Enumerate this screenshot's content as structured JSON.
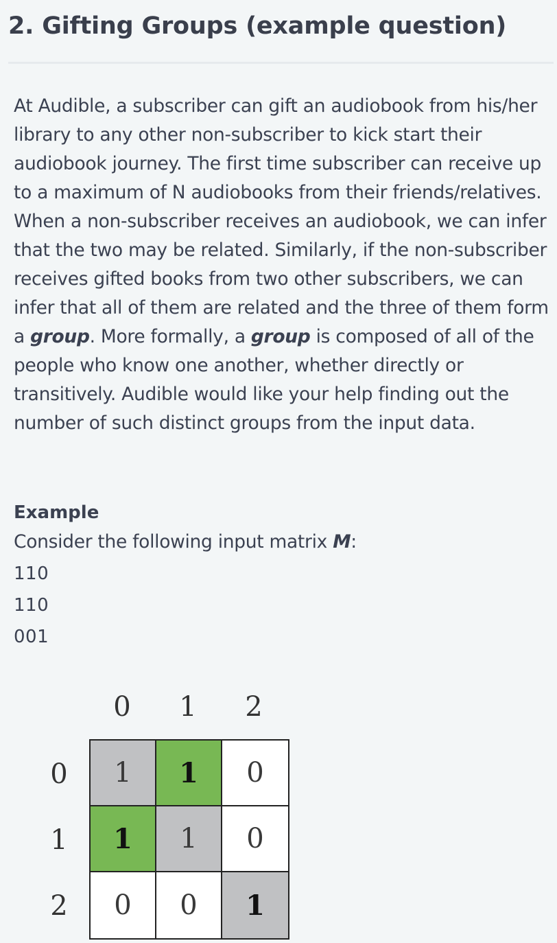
{
  "title": "2. Gifting Groups (example question)",
  "description": {
    "part1": "At Audible, a subscriber can gift an audiobook from his/her library to any other non-subscriber to kick start their audiobook journey. The first time subscriber can receive up to a maximum of N audiobooks from their friends/relatives. When a non-subscriber receives an audiobook, we can infer that the two may be related. Similarly, if the non-subscriber receives gifted books from two other subscribers, we can infer that all of them are related and the three of them form a ",
    "group_term_1": "group",
    "part2": ". More formally, a ",
    "group_term_2": "group",
    "part3": " is composed of all of the people who know one another, whether directly or transitively. Audible would like your help finding out the number of such distinct groups from the input data."
  },
  "example": {
    "heading": "Example",
    "intro": "Consider the following input matrix ",
    "matrix_symbol": "M",
    "intro_suffix": ":",
    "lines": [
      "110",
      "110",
      "001"
    ]
  },
  "matrix_figure": {
    "col_labels": [
      "0",
      "1",
      "2"
    ],
    "row_labels": [
      "0",
      "1",
      "2"
    ],
    "cells": [
      [
        {
          "value": "1",
          "style": "gray"
        },
        {
          "value": "1",
          "style": "green"
        },
        {
          "value": "0",
          "style": "white"
        }
      ],
      [
        {
          "value": "1",
          "style": "green"
        },
        {
          "value": "1",
          "style": "gray"
        },
        {
          "value": "0",
          "style": "white"
        }
      ],
      [
        {
          "value": "0",
          "style": "white"
        },
        {
          "value": "0",
          "style": "white"
        },
        {
          "value": "1",
          "style": "gray-bold"
        }
      ]
    ],
    "colors": {
      "gray": "#c0c1c3",
      "green": "#78b854",
      "white": "#ffffff",
      "border": "#222222"
    }
  }
}
